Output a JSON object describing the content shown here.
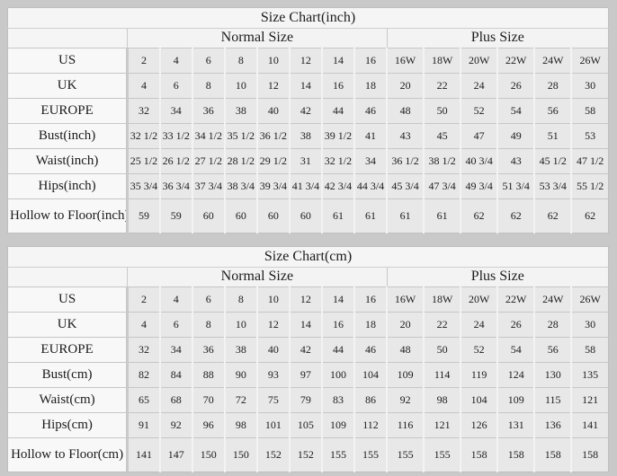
{
  "colors": {
    "page_background": "#c9c9c9",
    "table_background": "#f5f5f5",
    "data_cell_background": "#e8e8e8",
    "label_cell_background": "#f8f8f8",
    "grid_line": "#c6c6c6"
  },
  "chart_data": [
    {
      "type": "table",
      "title": "Size Chart(inch)",
      "column_groups": [
        {
          "label": "",
          "span": 1
        },
        {
          "label": "Normal Size",
          "span": 8
        },
        {
          "label": "Plus Size",
          "span": 6
        }
      ],
      "rows": [
        {
          "label": "US",
          "values": [
            "2",
            "4",
            "6",
            "8",
            "10",
            "12",
            "14",
            "16",
            "16W",
            "18W",
            "20W",
            "22W",
            "24W",
            "26W"
          ]
        },
        {
          "label": "UK",
          "values": [
            "4",
            "6",
            "8",
            "10",
            "12",
            "14",
            "16",
            "18",
            "20",
            "22",
            "24",
            "26",
            "28",
            "30"
          ]
        },
        {
          "label": "EUROPE",
          "values": [
            "32",
            "34",
            "36",
            "38",
            "40",
            "42",
            "44",
            "46",
            "48",
            "50",
            "52",
            "54",
            "56",
            "58"
          ]
        },
        {
          "label": "Bust(inch)",
          "values": [
            "32 1/2",
            "33 1/2",
            "34 1/2",
            "35 1/2",
            "36 1/2",
            "38",
            "39 1/2",
            "41",
            "43",
            "45",
            "47",
            "49",
            "51",
            "53"
          ]
        },
        {
          "label": "Waist(inch)",
          "values": [
            "25 1/2",
            "26 1/2",
            "27 1/2",
            "28 1/2",
            "29 1/2",
            "31",
            "32 1/2",
            "34",
            "36 1/2",
            "38 1/2",
            "40 3/4",
            "43",
            "45 1/2",
            "47 1/2"
          ]
        },
        {
          "label": "Hips(inch)",
          "values": [
            "35 3/4",
            "36 3/4",
            "37 3/4",
            "38 3/4",
            "39 3/4",
            "41 3/4",
            "42 3/4",
            "44 3/4",
            "45 3/4",
            "47 3/4",
            "49 3/4",
            "51 3/4",
            "53 3/4",
            "55 1/2"
          ]
        },
        {
          "label": "Hollow to Floor(inch)",
          "values": [
            "59",
            "59",
            "60",
            "60",
            "60",
            "60",
            "61",
            "61",
            "61",
            "61",
            "62",
            "62",
            "62",
            "62"
          ]
        }
      ]
    },
    {
      "type": "table",
      "title": "Size Chart(cm)",
      "column_groups": [
        {
          "label": "",
          "span": 1
        },
        {
          "label": "Normal Size",
          "span": 8
        },
        {
          "label": "Plus Size",
          "span": 6
        }
      ],
      "rows": [
        {
          "label": "US",
          "values": [
            "2",
            "4",
            "6",
            "8",
            "10",
            "12",
            "14",
            "16",
            "16W",
            "18W",
            "20W",
            "22W",
            "24W",
            "26W"
          ]
        },
        {
          "label": "UK",
          "values": [
            "4",
            "6",
            "8",
            "10",
            "12",
            "14",
            "16",
            "18",
            "20",
            "22",
            "24",
            "26",
            "28",
            "30"
          ]
        },
        {
          "label": "EUROPE",
          "values": [
            "32",
            "34",
            "36",
            "38",
            "40",
            "42",
            "44",
            "46",
            "48",
            "50",
            "52",
            "54",
            "56",
            "58"
          ]
        },
        {
          "label": "Bust(cm)",
          "values": [
            "82",
            "84",
            "88",
            "90",
            "93",
            "97",
            "100",
            "104",
            "109",
            "114",
            "119",
            "124",
            "130",
            "135"
          ]
        },
        {
          "label": "Waist(cm)",
          "values": [
            "65",
            "68",
            "70",
            "72",
            "75",
            "79",
            "83",
            "86",
            "92",
            "98",
            "104",
            "109",
            "115",
            "121"
          ]
        },
        {
          "label": "Hips(cm)",
          "values": [
            "91",
            "92",
            "96",
            "98",
            "101",
            "105",
            "109",
            "112",
            "116",
            "121",
            "126",
            "131",
            "136",
            "141"
          ]
        },
        {
          "label": "Hollow to Floor(cm)",
          "values": [
            "141",
            "147",
            "150",
            "150",
            "152",
            "152",
            "155",
            "155",
            "155",
            "155",
            "158",
            "158",
            "158",
            "158"
          ]
        }
      ]
    }
  ]
}
